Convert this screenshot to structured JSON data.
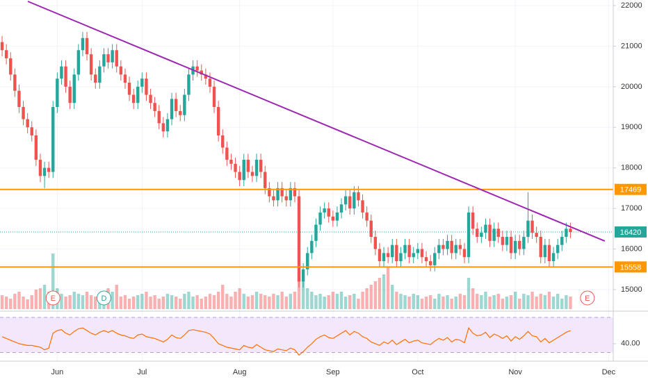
{
  "chart_data": {
    "type": "candlestick",
    "categories": [
      null,
      null,
      null,
      null,
      null,
      null,
      null,
      null,
      null,
      null,
      null,
      null,
      null,
      "Jun",
      null,
      null,
      null,
      null,
      null,
      null,
      null,
      null,
      null,
      null,
      null,
      null,
      null,
      null,
      null,
      null,
      null,
      null,
      null,
      "Jul",
      null,
      null,
      null,
      null,
      null,
      null,
      null,
      null,
      null,
      null,
      null,
      null,
      null,
      null,
      null,
      null,
      null,
      null,
      null,
      null,
      null,
      null,
      "Aug",
      null,
      null,
      null,
      null,
      null,
      null,
      null,
      null,
      null,
      null,
      null,
      null,
      null,
      null,
      null,
      null,
      null,
      null,
      null,
      null,
      null,
      "Sep",
      null,
      null,
      null,
      null,
      null,
      null,
      null,
      null,
      null,
      null,
      null,
      null,
      null,
      null,
      null,
      null,
      null,
      null,
      null,
      "Oct",
      null,
      null,
      null,
      null,
      null,
      null,
      null,
      null,
      null,
      null,
      null,
      null,
      null,
      null,
      null,
      null,
      null,
      null,
      null,
      null,
      null,
      null,
      "Nov",
      null,
      null,
      null,
      null,
      null,
      null,
      null,
      null,
      null,
      null,
      null,
      null,
      null,
      null,
      null,
      null,
      null,
      null,
      null,
      null,
      null,
      "Dec"
    ],
    "open": [
      21100,
      20900,
      20700,
      20300,
      19900,
      19500,
      19200,
      19000,
      18800,
      18200,
      17800,
      18000,
      17900,
      19500,
      20200,
      20500,
      20000,
      19600,
      20300,
      20900,
      21200,
      20800,
      20300,
      20100,
      20500,
      20800,
      20600,
      20900,
      20500,
      20300,
      20100,
      19800,
      19600,
      20000,
      20200,
      19800,
      19600,
      19400,
      19100,
      18900,
      19200,
      19700,
      19400,
      19300,
      19800,
      20300,
      20500,
      20400,
      20300,
      20200,
      20000,
      19500,
      18800,
      18500,
      18200,
      18100,
      17900,
      17700,
      18200,
      17900,
      17800,
      18200,
      17900,
      17500,
      17300,
      17200,
      17500,
      17300,
      17200,
      17500,
      17300,
      15200,
      15500,
      15900,
      16200,
      16600,
      16900,
      17000,
      16800,
      16700,
      16900,
      17100,
      17300,
      17000,
      17400,
      17200,
      16900,
      16700,
      16300,
      16000,
      15700,
      15900,
      15800,
      16100,
      15700,
      15900,
      16100,
      15800,
      15900,
      16000,
      15800,
      15700,
      15600,
      15900,
      16100,
      16000,
      16200,
      15900,
      16100,
      16000,
      15800,
      16900,
      16500,
      16300,
      16400,
      16600,
      16200,
      16500,
      16300,
      16100,
      16300,
      15900,
      16200,
      16000,
      16300,
      16700,
      16400,
      16300,
      15800,
      16100,
      15700,
      15900,
      16100,
      16300,
      16500,
      null,
      null,
      null,
      null,
      null,
      null,
      null,
      null,
      null
    ],
    "high": [
      21250,
      21050,
      20850,
      20450,
      20050,
      19650,
      19350,
      19150,
      18950,
      18350,
      18150,
      18150,
      19650,
      20350,
      20650,
      20650,
      20150,
      20450,
      21050,
      21350,
      21350,
      20950,
      20450,
      20650,
      20950,
      20950,
      21050,
      21050,
      20650,
      20450,
      20250,
      19950,
      20150,
      20350,
      20350,
      19950,
      19750,
      19550,
      19250,
      19350,
      19850,
      19850,
      19550,
      19950,
      20450,
      20650,
      20650,
      20550,
      20450,
      20350,
      20150,
      19650,
      18950,
      18650,
      18350,
      18250,
      18050,
      18350,
      18350,
      18050,
      18350,
      18350,
      18050,
      17650,
      17450,
      17650,
      17650,
      17450,
      17650,
      17650,
      17450,
      15650,
      16050,
      16350,
      16750,
      17050,
      17150,
      17150,
      16950,
      17050,
      17250,
      17450,
      17450,
      17550,
      17550,
      17350,
      17050,
      16850,
      16450,
      16150,
      16050,
      16050,
      16250,
      16250,
      16050,
      16250,
      16250,
      16050,
      16150,
      16150,
      15950,
      15850,
      16050,
      16250,
      16250,
      16350,
      16350,
      16250,
      16250,
      16150,
      17050,
      17050,
      16650,
      16550,
      16750,
      16750,
      16650,
      16650,
      16450,
      16450,
      16450,
      16350,
      16350,
      16450,
      17400,
      16850,
      16550,
      16450,
      16250,
      16250,
      16050,
      16250,
      16450,
      16650,
      16650,
      null,
      null,
      null,
      null,
      null,
      null,
      null,
      null,
      null
    ],
    "low": [
      20750,
      20550,
      20150,
      19750,
      19350,
      19050,
      18850,
      18650,
      18050,
      17650,
      17500,
      17750,
      17750,
      19350,
      20050,
      19850,
      19450,
      19450,
      20150,
      20750,
      20650,
      20150,
      19950,
      19950,
      20350,
      20450,
      20450,
      20350,
      20150,
      19950,
      19650,
      19450,
      19450,
      19850,
      19650,
      19450,
      19250,
      18950,
      18750,
      18750,
      19050,
      19250,
      19150,
      19150,
      19650,
      20150,
      20250,
      20150,
      20050,
      19850,
      19350,
      18650,
      18350,
      18050,
      17950,
      17750,
      17550,
      17550,
      17750,
      17650,
      17650,
      17750,
      17350,
      17150,
      17050,
      17050,
      17150,
      17050,
      17050,
      17150,
      15050,
      15050,
      15350,
      15750,
      16050,
      16450,
      16750,
      16650,
      16550,
      16550,
      16750,
      16950,
      16850,
      16850,
      17050,
      16750,
      16550,
      16150,
      15850,
      15550,
      15550,
      15650,
      15650,
      15550,
      15550,
      15750,
      15650,
      15650,
      15750,
      15650,
      15550,
      15450,
      15450,
      15750,
      15850,
      15850,
      15750,
      15750,
      15850,
      15650,
      15650,
      16350,
      16150,
      16150,
      16250,
      16050,
      16050,
      16150,
      15950,
      15950,
      15750,
      15750,
      15850,
      15850,
      16150,
      16250,
      16150,
      15650,
      15650,
      15550,
      15550,
      15750,
      15950,
      16150,
      16270,
      null,
      null,
      null,
      null,
      null,
      null,
      null,
      null,
      null
    ],
    "close": [
      20900,
      20700,
      20300,
      19900,
      19500,
      19200,
      19000,
      18800,
      18200,
      17800,
      18000,
      17900,
      19500,
      20200,
      20500,
      20000,
      19600,
      20300,
      20900,
      21200,
      20800,
      20300,
      20100,
      20500,
      20800,
      20600,
      20900,
      20500,
      20300,
      20100,
      19800,
      19600,
      20000,
      20200,
      19800,
      19600,
      19400,
      19100,
      18900,
      19200,
      19700,
      19400,
      19300,
      19800,
      20300,
      20500,
      20400,
      20300,
      20200,
      20000,
      19500,
      18800,
      18500,
      18200,
      18100,
      17900,
      17700,
      18200,
      17900,
      17800,
      18200,
      17900,
      17500,
      17300,
      17200,
      17500,
      17300,
      17200,
      17500,
      17300,
      15200,
      15500,
      15900,
      16200,
      16600,
      16900,
      17000,
      16800,
      16700,
      16900,
      17100,
      17300,
      17000,
      17400,
      17200,
      16900,
      16700,
      16300,
      16000,
      15700,
      15900,
      15800,
      16100,
      15700,
      15900,
      16100,
      15800,
      15900,
      16000,
      15800,
      15700,
      15600,
      15900,
      16100,
      16000,
      16200,
      15900,
      16100,
      16000,
      15800,
      16900,
      16500,
      16300,
      16400,
      16600,
      16200,
      16500,
      16300,
      16100,
      16300,
      15900,
      16200,
      16000,
      16300,
      16700,
      16400,
      16300,
      15800,
      16100,
      15700,
      15900,
      16100,
      16300,
      16500,
      16420,
      null,
      null,
      null,
      null,
      null,
      null,
      null,
      null,
      null
    ],
    "volume": [
      20,
      18,
      15,
      22,
      25,
      18,
      14,
      20,
      28,
      30,
      35,
      25,
      80,
      30,
      22,
      18,
      20,
      25,
      22,
      20,
      25,
      20,
      18,
      22,
      20,
      30,
      25,
      35,
      18,
      20,
      15,
      18,
      20,
      22,
      25,
      18,
      20,
      15,
      18,
      22,
      20,
      18,
      15,
      22,
      25,
      18,
      20,
      15,
      18,
      22,
      20,
      25,
      35,
      22,
      18,
      25,
      30,
      22,
      18,
      20,
      25,
      22,
      20,
      18,
      22,
      20,
      25,
      18,
      22,
      25,
      55,
      40,
      30,
      25,
      20,
      22,
      18,
      20,
      25,
      22,
      25,
      18,
      20,
      22,
      15,
      25,
      30,
      35,
      40,
      45,
      50,
      60,
      35,
      25,
      22,
      20,
      18,
      22,
      20,
      15,
      18,
      20,
      15,
      22,
      18,
      20,
      15,
      18,
      22,
      20,
      45,
      30,
      22,
      20,
      25,
      18,
      20,
      22,
      15,
      18,
      20,
      25,
      15,
      22,
      20,
      25,
      18,
      22,
      20,
      25,
      18,
      22,
      15,
      20,
      18,
      null,
      null,
      null,
      null,
      null,
      null,
      null,
      null,
      null
    ],
    "ylim": [
      14520,
      22137
    ],
    "yticks": [
      15000,
      16000,
      17000,
      18000,
      19000,
      20000,
      21000,
      22000
    ],
    "grid": true,
    "up_color": "#26a69a",
    "down_color": "#ef5350",
    "levels": [
      {
        "value": 17469,
        "color": "#ff9800"
      },
      {
        "value": 15558,
        "color": "#ff9800"
      }
    ],
    "last_price": {
      "value": 16420,
      "color": "#26a69a"
    },
    "trendline": {
      "start": [
        6.06,
        22103
      ],
      "end": [
        142.1,
        16196
      ],
      "color": "#9c27b0"
    },
    "events": [
      {
        "index": 12,
        "label": "E",
        "color": "#ef5350"
      },
      {
        "index": 24,
        "label": "D",
        "color": "#26a69a"
      },
      {
        "index": 138,
        "label": "E",
        "color": "#ef5350"
      }
    ],
    "rsi": {
      "values": [
        48,
        46,
        44,
        42,
        40,
        39,
        38,
        38,
        37,
        36,
        33,
        35,
        52,
        55,
        56,
        52,
        50,
        54,
        57,
        58,
        55,
        52,
        50,
        53,
        55,
        53,
        55,
        52,
        50,
        49,
        47,
        46,
        50,
        51,
        48,
        47,
        46,
        44,
        42,
        45,
        50,
        47,
        46,
        50,
        55,
        56,
        55,
        54,
        53,
        51,
        46,
        40,
        38,
        36,
        35,
        34,
        33,
        38,
        36,
        35,
        39,
        36,
        33,
        32,
        31,
        34,
        33,
        32,
        35,
        33,
        27,
        31,
        36,
        40,
        45,
        48,
        50,
        47,
        46,
        49,
        52,
        55,
        50,
        54,
        52,
        48,
        46,
        42,
        40,
        38,
        42,
        40,
        44,
        39,
        42,
        45,
        41,
        43,
        44,
        41,
        40,
        39,
        43,
        46,
        44,
        47,
        42,
        45,
        44,
        41,
        58,
        52,
        49,
        50,
        53,
        47,
        51,
        49,
        46,
        49,
        43,
        48,
        45,
        49,
        54,
        49,
        48,
        42,
        46,
        41,
        44,
        47,
        50,
        53,
        55,
        null,
        null,
        null,
        null,
        null,
        null,
        null,
        null,
        null
      ],
      "ylim": [
        24,
        74
      ],
      "yticks": [
        {
          "value": 40,
          "label": "40.00"
        }
      ],
      "band": [
        30,
        70
      ],
      "color": "#ff6d00"
    }
  }
}
